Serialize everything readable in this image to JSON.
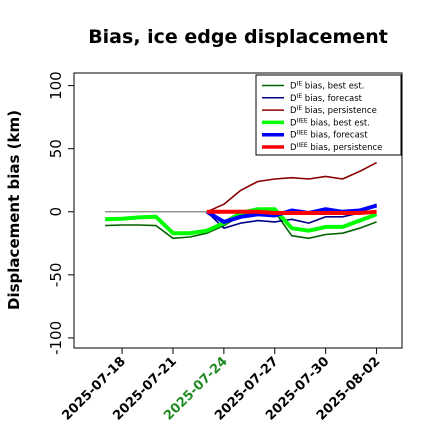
{
  "chart_data": {
    "type": "line",
    "title": "Bias, ice edge displacement",
    "xlabel": "",
    "ylabel": "Displacement bias (km)",
    "ylim": [
      -108,
      110
    ],
    "yticks": [
      -100,
      -50,
      0,
      50,
      100
    ],
    "xlim": [
      "2025-07-15T04:00",
      "2025-08-03T12:00"
    ],
    "xticks": [
      "2025-07-18",
      "2025-07-21",
      "2025-07-24",
      "2025-07-27",
      "2025-07-30",
      "2025-08-02"
    ],
    "highlight_tick": "2025-07-24",
    "highlight_color": "#228B22",
    "reference_line": {
      "y": 0,
      "from": "2025-07-17",
      "to": "2025-08-02",
      "color": "#808080"
    },
    "legend": {
      "placement": "top-right",
      "entries": [
        {
          "sup": "IE",
          "text": "bias, best est."
        },
        {
          "sup": "IE",
          "text": "bias, forecast"
        },
        {
          "sup": "IE",
          "text": "bias, persistence"
        },
        {
          "sup": "IIEE",
          "text": "bias, best est."
        },
        {
          "sup": "IIEE",
          "text": "bias, forecast"
        },
        {
          "sup": "IIEE",
          "text": "bias, persistence"
        }
      ]
    },
    "series": [
      {
        "color": "#006400",
        "width": 1.6,
        "x": [
          "2025-07-17",
          "2025-07-18",
          "2025-07-19",
          "2025-07-20",
          "2025-07-21",
          "2025-07-22",
          "2025-07-23",
          "2025-07-24",
          "2025-07-25",
          "2025-07-26",
          "2025-07-27",
          "2025-07-28",
          "2025-07-29",
          "2025-07-30",
          "2025-07-31",
          "2025-08-01",
          "2025-08-02"
        ],
        "values": [
          -11,
          -10.5,
          -10.5,
          -11,
          -21,
          -20,
          -17,
          -11,
          -3,
          0,
          0,
          -19,
          -21,
          -18,
          -17,
          -13,
          -8
        ]
      },
      {
        "color": "#00008B",
        "width": 1.6,
        "x": [
          "2025-07-23",
          "2025-07-24",
          "2025-07-25",
          "2025-07-26",
          "2025-07-27",
          "2025-07-28",
          "2025-07-29",
          "2025-07-30",
          "2025-07-31",
          "2025-08-01",
          "2025-08-02"
        ],
        "values": [
          0,
          -13,
          -9,
          -7,
          -8,
          -6,
          -9,
          -4,
          -4,
          -1,
          6
        ]
      },
      {
        "color": "#8B0000",
        "width": 1.6,
        "x": [
          "2025-07-23",
          "2025-07-24",
          "2025-07-25",
          "2025-07-26",
          "2025-07-27",
          "2025-07-28",
          "2025-07-29",
          "2025-07-30",
          "2025-07-31",
          "2025-08-01",
          "2025-08-02"
        ],
        "values": [
          0,
          6,
          17,
          24,
          26,
          27,
          26,
          28,
          26,
          32,
          39
        ]
      },
      {
        "color": "#00FF00",
        "width": 4,
        "x": [
          "2025-07-17",
          "2025-07-18",
          "2025-07-19",
          "2025-07-20",
          "2025-07-21",
          "2025-07-22",
          "2025-07-23",
          "2025-07-24",
          "2025-07-25",
          "2025-07-26",
          "2025-07-27",
          "2025-07-28",
          "2025-07-29",
          "2025-07-30",
          "2025-07-31",
          "2025-08-01",
          "2025-08-02"
        ],
        "values": [
          -6,
          -5.5,
          -4.5,
          -4,
          -17,
          -17,
          -15,
          -9,
          -1,
          2,
          2,
          -13,
          -15,
          -12,
          -12,
          -7,
          -2
        ]
      },
      {
        "color": "#0000FF",
        "width": 4,
        "x": [
          "2025-07-23",
          "2025-07-24",
          "2025-07-25",
          "2025-07-26",
          "2025-07-27",
          "2025-07-28",
          "2025-07-29",
          "2025-07-30",
          "2025-07-31",
          "2025-08-01",
          "2025-08-02"
        ],
        "values": [
          0,
          -8,
          -4,
          -2,
          -3,
          1,
          -1,
          2,
          0,
          1,
          5
        ]
      },
      {
        "color": "#FF0000",
        "width": 4,
        "x": [
          "2025-07-23",
          "2025-07-24",
          "2025-07-25",
          "2025-07-26",
          "2025-07-27",
          "2025-07-28",
          "2025-07-29",
          "2025-07-30",
          "2025-07-31",
          "2025-08-01",
          "2025-08-02"
        ],
        "values": [
          0,
          0,
          0,
          0,
          -1,
          -1,
          -1,
          -1,
          -1,
          -1,
          0
        ]
      }
    ]
  }
}
